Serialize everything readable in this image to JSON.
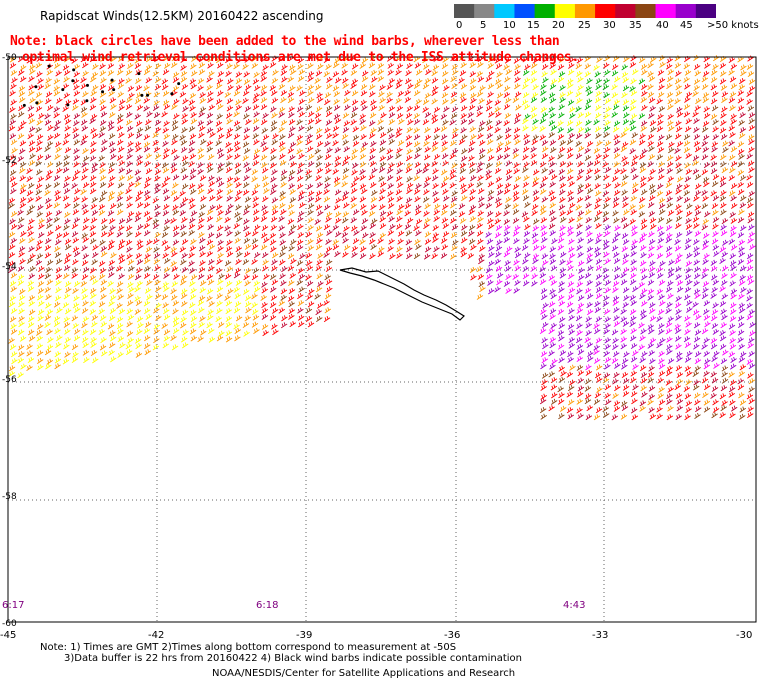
{
  "title": "Rapidscat Winds(12.5KM) 20160422 ascending",
  "note_line1": "Note: black circles have been added to the wind barbs, wherever less than",
  "note_line2": "optimal wind retrieval conditions are met due to the ISS attitude changes.",
  "colorbar": {
    "labels": [
      "0",
      "5",
      "10",
      "15",
      "20",
      "25",
      "30",
      "35",
      "40",
      "45",
      ">50 knots"
    ],
    "colors": [
      "#555555",
      "#888888",
      "#00c8ff",
      "#0050ff",
      "#00b000",
      "#ffff00",
      "#ff9900",
      "#ff0000",
      "#c00030",
      "#8b4513",
      "#ff00ff",
      "#9900cc",
      "#4b0082"
    ]
  },
  "lat_labels": [
    "-50",
    "-52",
    "-54",
    "-56",
    "-58",
    "-60"
  ],
  "lon_labels": [
    "-45",
    "-42",
    "-39",
    "-36",
    "-33",
    "-30"
  ],
  "time_labels": [
    "6:17",
    "6:18",
    "4:43"
  ],
  "footer_line1": "Note: 1) Times are GMT 2)Times along bottom correspond to measurement at -50S",
  "footer_line2": "3)Data buffer is 22 hrs from 20160422 4) Black wind barbs indicate possible contamination",
  "footer_line3": "NOAA/NESDIS/Center for Satellite Applications and Research"
}
